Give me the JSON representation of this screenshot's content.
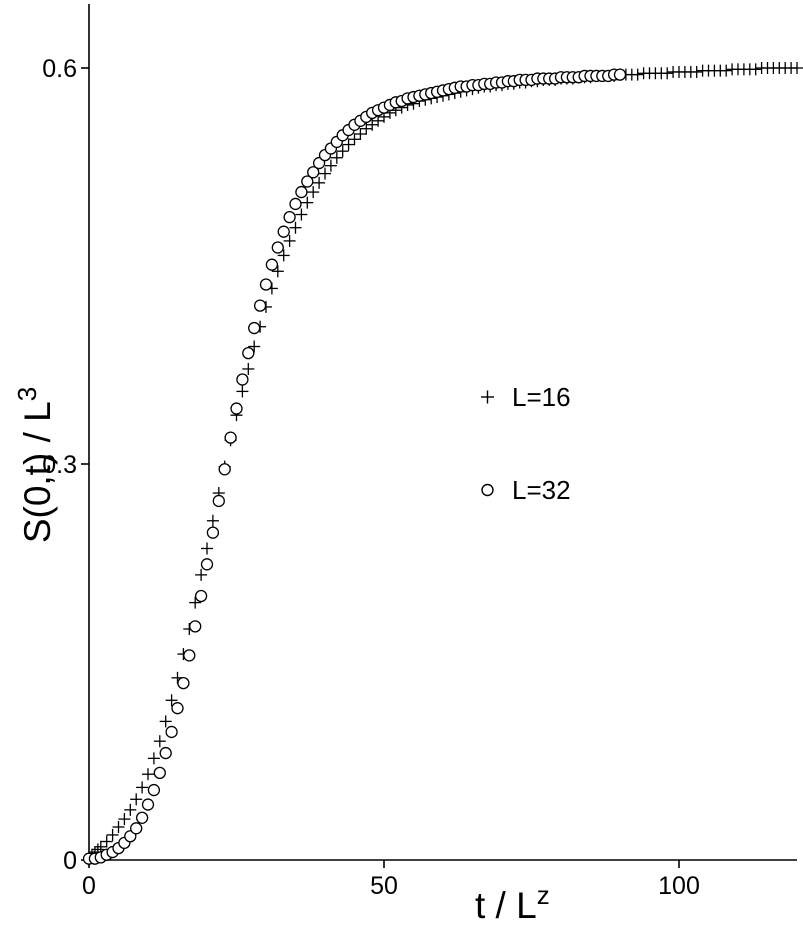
{
  "chart_data": {
    "type": "scatter",
    "title": "",
    "xlabel": {
      "main": "t / L",
      "sup": "z"
    },
    "ylabel": {
      "main": "S(0,t) / L",
      "sup": "3"
    },
    "xlim": [
      0,
      120
    ],
    "ylim": [
      0,
      0.6
    ],
    "x_ticks": [
      {
        "value": 0,
        "label": "0"
      },
      {
        "value": 50,
        "label": "50"
      },
      {
        "value": 100,
        "label": "100"
      }
    ],
    "y_ticks": [
      {
        "value": 0,
        "label": "0"
      },
      {
        "value": 0.3,
        "label": "0.3"
      },
      {
        "value": 0.6,
        "label": "0.6"
      }
    ],
    "grid": false,
    "legend_position": "right-center",
    "series": [
      {
        "name": "L=16",
        "marker": "plus",
        "x": [
          0.5,
          1,
          1.5,
          2,
          3,
          4,
          5,
          6,
          7,
          8,
          9,
          10,
          11,
          12,
          13,
          14,
          15,
          16,
          17,
          18,
          19,
          20,
          21,
          22,
          23,
          24,
          25,
          26,
          27,
          28,
          29,
          30,
          31,
          32,
          33,
          34,
          35,
          36,
          37,
          38,
          39,
          40,
          41,
          42,
          43,
          44,
          45,
          46,
          47,
          48,
          49,
          50,
          51,
          52,
          53,
          54,
          55,
          56,
          57,
          58,
          59,
          60,
          61,
          62,
          63,
          64,
          65,
          66,
          67,
          68,
          69,
          70,
          71,
          72,
          73,
          74,
          75,
          76,
          77,
          78,
          79,
          80,
          81,
          82,
          83,
          84,
          85,
          86,
          87,
          88,
          89,
          90,
          91,
          92,
          93,
          94,
          95,
          96,
          97,
          98,
          99,
          100,
          101,
          102,
          103,
          104,
          105,
          106,
          107,
          108,
          109,
          110,
          111,
          112,
          113,
          114,
          115,
          116,
          117,
          118,
          119,
          120
        ],
        "y": [
          0.004,
          0.006,
          0.008,
          0.01,
          0.014,
          0.019,
          0.025,
          0.031,
          0.038,
          0.046,
          0.055,
          0.065,
          0.077,
          0.09,
          0.105,
          0.121,
          0.138,
          0.156,
          0.175,
          0.195,
          0.216,
          0.236,
          0.257,
          0.278,
          0.298,
          0.318,
          0.337,
          0.355,
          0.372,
          0.389,
          0.404,
          0.419,
          0.433,
          0.446,
          0.458,
          0.469,
          0.479,
          0.489,
          0.498,
          0.506,
          0.513,
          0.52,
          0.526,
          0.532,
          0.537,
          0.542,
          0.546,
          0.55,
          0.554,
          0.557,
          0.56,
          0.563,
          0.566,
          0.568,
          0.57,
          0.572,
          0.573,
          0.575,
          0.576,
          0.577,
          0.578,
          0.579,
          0.58,
          0.581,
          0.582,
          0.583,
          0.584,
          0.585,
          0.586,
          0.586,
          0.587,
          0.587,
          0.588,
          0.588,
          0.589,
          0.589,
          0.59,
          0.59,
          0.591,
          0.591,
          0.591,
          0.592,
          0.592,
          0.592,
          0.593,
          0.593,
          0.593,
          0.594,
          0.594,
          0.594,
          0.594,
          0.595,
          0.595,
          0.595,
          0.595,
          0.596,
          0.596,
          0.596,
          0.596,
          0.596,
          0.597,
          0.597,
          0.597,
          0.597,
          0.597,
          0.598,
          0.598,
          0.598,
          0.598,
          0.598,
          0.599,
          0.599,
          0.599,
          0.599,
          0.599,
          0.6,
          0.6,
          0.6,
          0.6,
          0.6,
          0.6,
          0.6
        ]
      },
      {
        "name": "L=32",
        "marker": "circle",
        "x": [
          0,
          1,
          2,
          3,
          4,
          5,
          6,
          7,
          8,
          9,
          10,
          11,
          12,
          13,
          14,
          15,
          16,
          17,
          18,
          19,
          20,
          21,
          22,
          23,
          24,
          25,
          26,
          27,
          28,
          29,
          30,
          31,
          32,
          33,
          34,
          35,
          36,
          37,
          38,
          39,
          40,
          41,
          42,
          43,
          44,
          45,
          46,
          47,
          48,
          49,
          50,
          51,
          52,
          53,
          54,
          55,
          56,
          57,
          58,
          59,
          60,
          61,
          62,
          63,
          64,
          65,
          66,
          67,
          68,
          69,
          70,
          71,
          72,
          73,
          74,
          75,
          76,
          77,
          78,
          79,
          80,
          81,
          82,
          83,
          84,
          85,
          86,
          87,
          88,
          89,
          90
        ],
        "y": [
          0.001,
          0.001,
          0.002,
          0.004,
          0.006,
          0.009,
          0.013,
          0.018,
          0.024,
          0.032,
          0.042,
          0.053,
          0.066,
          0.081,
          0.097,
          0.115,
          0.134,
          0.155,
          0.177,
          0.2,
          0.224,
          0.248,
          0.272,
          0.296,
          0.32,
          0.342,
          0.364,
          0.384,
          0.403,
          0.42,
          0.436,
          0.451,
          0.464,
          0.476,
          0.487,
          0.497,
          0.506,
          0.514,
          0.521,
          0.528,
          0.534,
          0.539,
          0.544,
          0.549,
          0.553,
          0.557,
          0.56,
          0.563,
          0.566,
          0.568,
          0.57,
          0.572,
          0.574,
          0.575,
          0.577,
          0.578,
          0.579,
          0.58,
          0.581,
          0.582,
          0.583,
          0.584,
          0.585,
          0.586,
          0.586,
          0.587,
          0.587,
          0.588,
          0.588,
          0.589,
          0.589,
          0.59,
          0.59,
          0.591,
          0.591,
          0.591,
          0.592,
          0.592,
          0.592,
          0.592,
          0.593,
          0.593,
          0.593,
          0.593,
          0.594,
          0.594,
          0.594,
          0.594,
          0.594,
          0.595,
          0.595
        ]
      }
    ]
  }
}
